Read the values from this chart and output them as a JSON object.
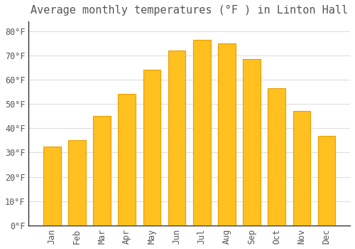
{
  "title": "Average monthly temperatures (°F ) in Linton Hall",
  "months": [
    "Jan",
    "Feb",
    "Mar",
    "Apr",
    "May",
    "Jun",
    "Jul",
    "Aug",
    "Sep",
    "Oct",
    "Nov",
    "Dec"
  ],
  "values": [
    32.5,
    35.0,
    45.0,
    54.0,
    64.0,
    72.0,
    76.5,
    75.0,
    68.5,
    56.5,
    47.0,
    37.0
  ],
  "bar_color": "#FFC020",
  "bar_edge_color": "#E8A000",
  "background_color": "#FFFFFF",
  "grid_color": "#DDDDDD",
  "text_color": "#555555",
  "yticks": [
    0,
    10,
    20,
    30,
    40,
    50,
    60,
    70,
    80
  ],
  "ytick_labels": [
    "0°F",
    "10°F",
    "20°F",
    "30°F",
    "40°F",
    "50°F",
    "60°F",
    "70°F",
    "80°F"
  ],
  "ylim": [
    0,
    84
  ],
  "title_fontsize": 11,
  "tick_fontsize": 8.5,
  "font_family": "monospace"
}
